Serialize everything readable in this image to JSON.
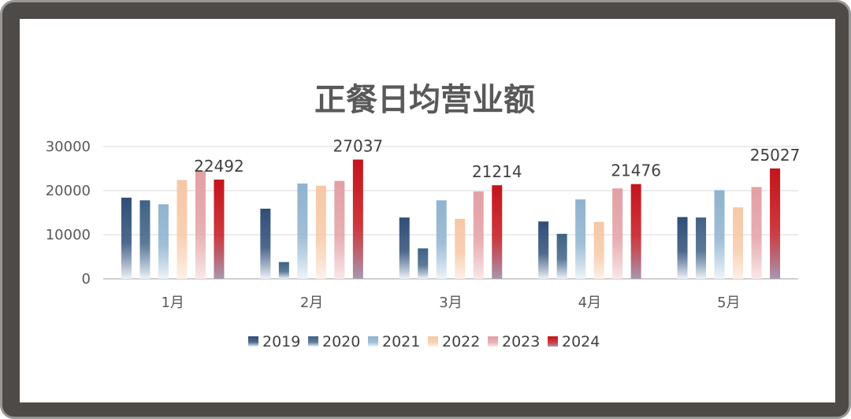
{
  "chart_data": {
    "type": "bar",
    "title": "正餐日均营业额",
    "categories": [
      "1月",
      "2月",
      "3月",
      "4月",
      "5月"
    ],
    "ylim": [
      0,
      30000
    ],
    "yticks": [
      "0",
      "10000",
      "20000",
      "30000"
    ],
    "legend_position": "bottom",
    "grid": true,
    "series": [
      {
        "name": "2019",
        "values": [
          18400,
          15900,
          13900,
          13000,
          14000
        ],
        "color": "#2f4e78",
        "fade": "#eef3fa"
      },
      {
        "name": "2020",
        "values": [
          17800,
          3800,
          6900,
          10200,
          13900
        ],
        "color": "#3f6285",
        "fade": "#eef3fa"
      },
      {
        "name": "2021",
        "values": [
          16900,
          21600,
          17800,
          18000,
          20100
        ],
        "color": "#8fb3cf",
        "fade": "#eef5fa"
      },
      {
        "name": "2022",
        "values": [
          22400,
          21100,
          13600,
          12900,
          16200
        ],
        "color": "#f6c8a6",
        "fade": "#fdf1e8"
      },
      {
        "name": "2023",
        "values": [
          24500,
          22200,
          19800,
          20500,
          20800
        ],
        "color": "#e3a0a4",
        "fade": "#f8e8ea"
      },
      {
        "name": "2024",
        "values": [
          22492,
          27037,
          21214,
          21476,
          25027
        ],
        "color": "#c4141b",
        "fade": "#a898b0"
      }
    ],
    "data_labels": {
      "series": "2024",
      "values": [
        "22492",
        "27037",
        "21214",
        "21476",
        "25027"
      ]
    }
  }
}
